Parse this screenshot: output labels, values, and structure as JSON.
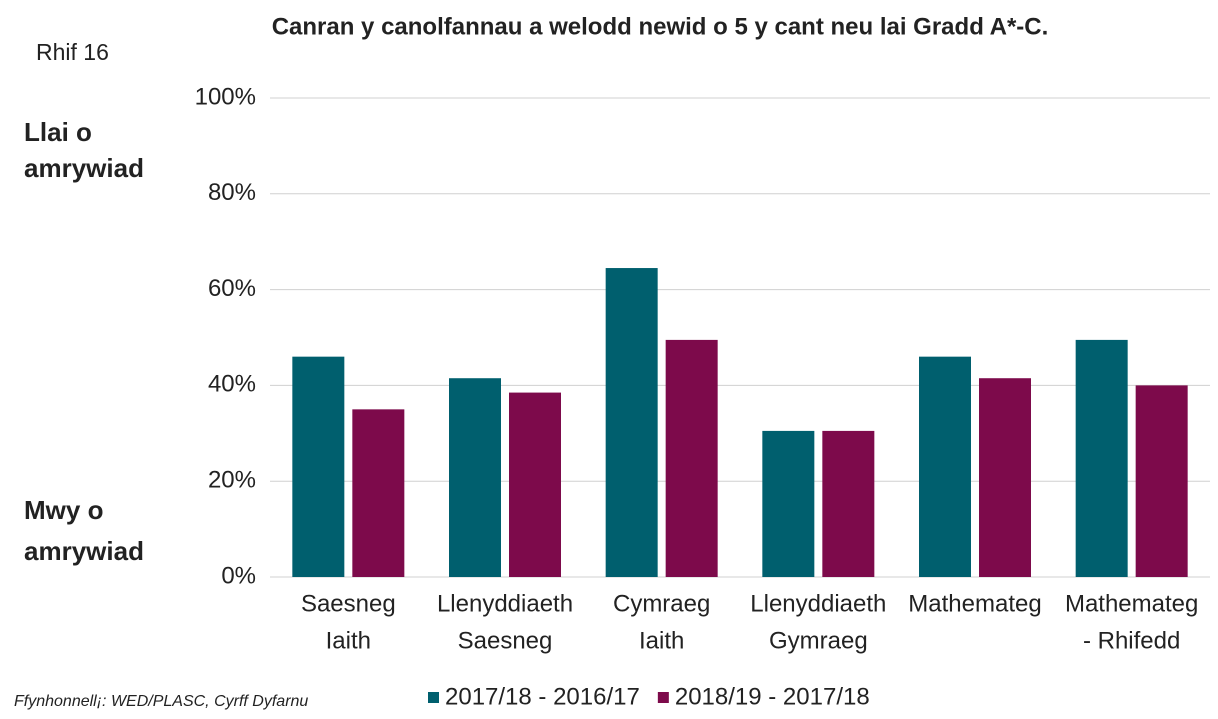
{
  "chart_data": {
    "type": "bar",
    "title": "Canran y canolfannau a welodd newid o 5 y cant neu lai Gradd A*-C.",
    "figure_label": "Rhif 16",
    "annotations": [
      [
        "Llai o",
        "amrywiad"
      ],
      [
        "Mwy o",
        "amrywiad"
      ]
    ],
    "source": "Ffynhonnell¡: WED/PLASC, Cyrff Dyfarnu",
    "categories": [
      [
        "Saesneg",
        "Iaith"
      ],
      [
        "Llenyddiaeth",
        "Saesneg"
      ],
      [
        "Cymraeg",
        "Iaith"
      ],
      [
        "Llenyddiaeth",
        "Gymraeg"
      ],
      [
        "Mathemateg"
      ],
      [
        "Mathemateg",
        "- Rhifedd"
      ]
    ],
    "series": [
      {
        "name": "2017/18 - 2016/17",
        "color": "#005f6e",
        "values": [
          46,
          41.5,
          64.5,
          30.5,
          46,
          49.5
        ]
      },
      {
        "name": "2018/19 - 2017/18",
        "color": "#7d0a4b",
        "values": [
          35,
          38.5,
          49.5,
          30.5,
          41.5,
          40
        ]
      }
    ],
    "ylim": [
      0,
      100
    ],
    "yticks": [
      {
        "value": 0,
        "label": "0%"
      },
      {
        "value": 20,
        "label": "20%"
      },
      {
        "value": 40,
        "label": "40%"
      },
      {
        "value": 60,
        "label": "60%"
      },
      {
        "value": 80,
        "label": "80%"
      },
      {
        "value": 100,
        "label": "100%"
      }
    ],
    "grid": true,
    "legend": "bottom"
  }
}
